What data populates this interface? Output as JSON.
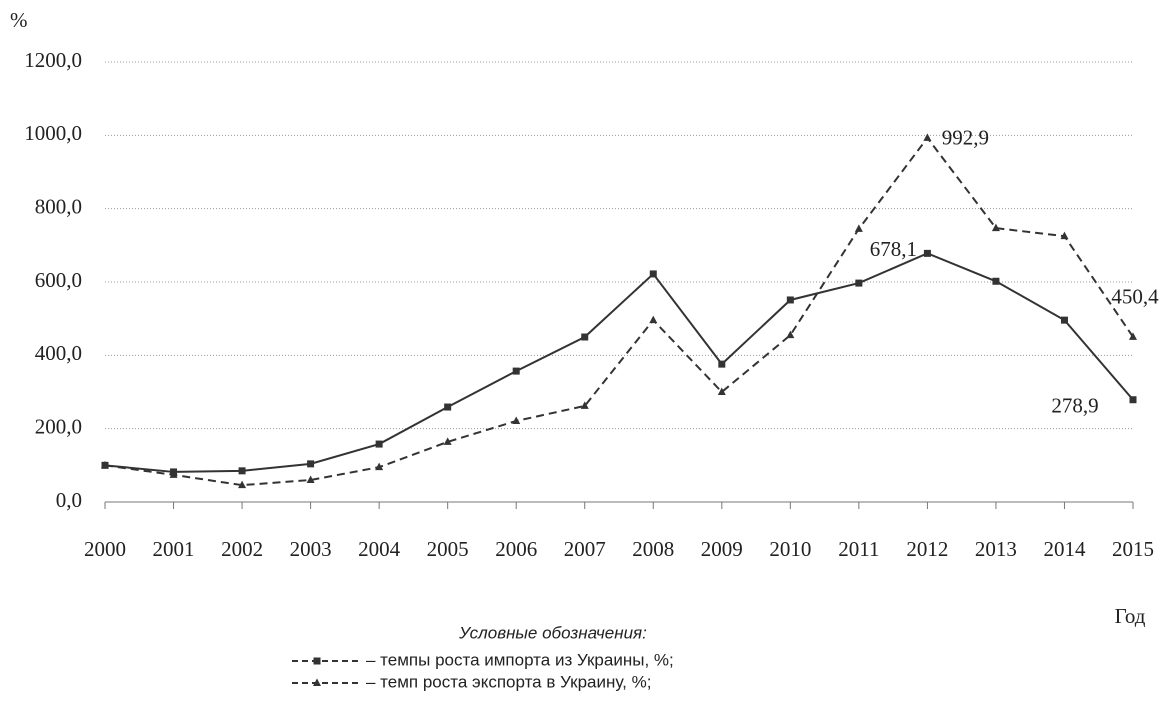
{
  "chart_data": {
    "type": "line",
    "y_axis_label": "%",
    "x_axis_label": "Год",
    "legend_title": "Условные обозначения:",
    "categories": [
      "2000",
      "2001",
      "2002",
      "2003",
      "2004",
      "2005",
      "2006",
      "2007",
      "2008",
      "2009",
      "2010",
      "2011",
      "2012",
      "2013",
      "2014",
      "2015"
    ],
    "series": [
      {
        "name": "– темпы роста импорта из Украины, %;",
        "color": "#333333",
        "dash": "solid",
        "marker": "square",
        "values": [
          100,
          82,
          85,
          104,
          158,
          259,
          357,
          450,
          622,
          376,
          551,
          597,
          678.1,
          602,
          496,
          278.9
        ],
        "value_labels": [
          null,
          null,
          null,
          null,
          null,
          null,
          null,
          null,
          null,
          null,
          null,
          null,
          "678,1",
          null,
          null,
          "278,9"
        ]
      },
      {
        "name": "– темп роста экспорта в Украину, %;",
        "color": "#333333",
        "dash": "dashed",
        "marker": "triangle",
        "values": [
          100,
          74,
          46,
          60,
          95,
          164,
          221,
          262,
          496,
          300,
          455,
          745,
          992.9,
          747,
          725,
          450.4
        ],
        "value_labels": [
          null,
          null,
          null,
          null,
          null,
          null,
          null,
          null,
          null,
          null,
          null,
          null,
          "992,9",
          null,
          null,
          "450,4"
        ]
      }
    ],
    "ylim": [
      0,
      1200
    ],
    "yticks": [
      {
        "value": 0,
        "label": "0,0"
      },
      {
        "value": 200,
        "label": "200,0"
      },
      {
        "value": 400,
        "label": "400,0"
      },
      {
        "value": 600,
        "label": "600,0"
      },
      {
        "value": 800,
        "label": "800,0"
      },
      {
        "value": 1000,
        "label": "1000,0"
      },
      {
        "value": 1200,
        "label": "1200,0"
      }
    ],
    "grid": true
  }
}
